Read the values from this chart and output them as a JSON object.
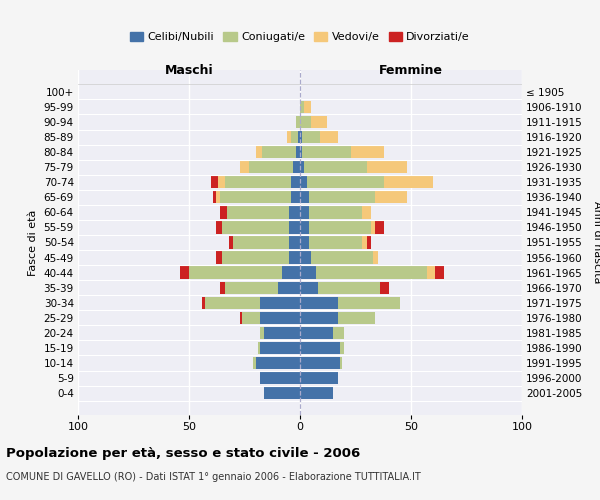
{
  "age_groups": [
    "0-4",
    "5-9",
    "10-14",
    "15-19",
    "20-24",
    "25-29",
    "30-34",
    "35-39",
    "40-44",
    "45-49",
    "50-54",
    "55-59",
    "60-64",
    "65-69",
    "70-74",
    "75-79",
    "80-84",
    "85-89",
    "90-94",
    "95-99",
    "100+"
  ],
  "birth_years": [
    "2001-2005",
    "1996-2000",
    "1991-1995",
    "1986-1990",
    "1981-1985",
    "1976-1980",
    "1971-1975",
    "1966-1970",
    "1961-1965",
    "1956-1960",
    "1951-1955",
    "1946-1950",
    "1941-1945",
    "1936-1940",
    "1931-1935",
    "1926-1930",
    "1921-1925",
    "1916-1920",
    "1911-1915",
    "1906-1910",
    "≤ 1905"
  ],
  "colors": {
    "celibi": "#4472a8",
    "coniugati": "#b8c98a",
    "vedovi": "#f5c87a",
    "divorziati": "#cc2222"
  },
  "males": {
    "celibi": [
      16,
      18,
      20,
      18,
      16,
      18,
      18,
      10,
      8,
      5,
      5,
      5,
      5,
      4,
      4,
      3,
      2,
      1,
      0,
      0,
      0
    ],
    "coniugati": [
      0,
      0,
      1,
      1,
      2,
      8,
      25,
      24,
      42,
      30,
      25,
      30,
      28,
      32,
      30,
      20,
      15,
      3,
      2,
      0,
      0
    ],
    "vedovi": [
      0,
      0,
      0,
      0,
      0,
      0,
      0,
      0,
      0,
      0,
      0,
      0,
      0,
      2,
      3,
      4,
      3,
      2,
      0,
      0,
      0
    ],
    "divorziati": [
      0,
      0,
      0,
      0,
      0,
      1,
      1,
      2,
      4,
      3,
      2,
      3,
      3,
      1,
      3,
      0,
      0,
      0,
      0,
      0,
      0
    ]
  },
  "females": {
    "nubili": [
      15,
      17,
      18,
      18,
      15,
      17,
      17,
      8,
      7,
      5,
      4,
      4,
      4,
      4,
      3,
      2,
      1,
      1,
      0,
      0,
      0
    ],
    "coniugate": [
      0,
      0,
      1,
      2,
      5,
      17,
      28,
      28,
      50,
      28,
      24,
      28,
      24,
      30,
      35,
      28,
      22,
      8,
      5,
      2,
      0
    ],
    "vedove": [
      0,
      0,
      0,
      0,
      0,
      0,
      0,
      0,
      4,
      2,
      2,
      2,
      4,
      14,
      22,
      18,
      15,
      8,
      7,
      3,
      0
    ],
    "divorziate": [
      0,
      0,
      0,
      0,
      0,
      0,
      0,
      4,
      4,
      0,
      2,
      4,
      0,
      0,
      0,
      0,
      0,
      0,
      0,
      0,
      0
    ]
  },
  "xlim": 100,
  "title": "Popolazione per età, sesso e stato civile - 2006",
  "subtitle": "COMUNE DI GAVELLO (RO) - Dati ISTAT 1° gennaio 2006 - Elaborazione TUTTITALIA.IT",
  "xlabel_left": "Maschi",
  "xlabel_right": "Femmine",
  "ylabel_left": "Fasce di età",
  "ylabel_right": "Anni di nascita",
  "bg_color": "#eeeef5",
  "fig_color": "#f5f5f5"
}
